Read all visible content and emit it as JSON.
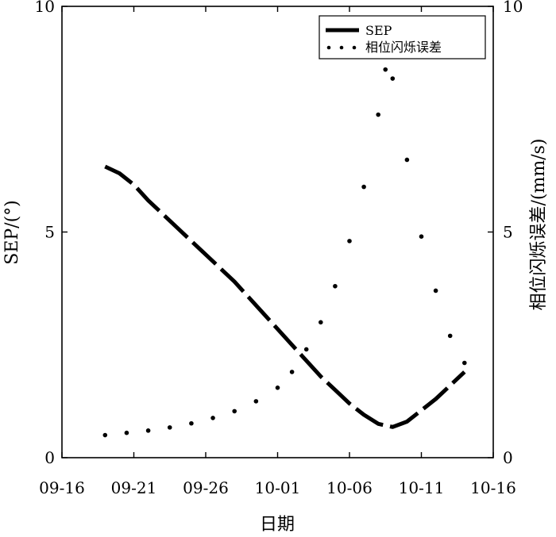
{
  "chart_data": {
    "type": "line",
    "xlabel": "日期",
    "ylabel_left": "SEP/(°)",
    "ylabel_right": "相位闪烁误差/(mm/s)",
    "x_ticks": [
      "09-16",
      "09-21",
      "09-26",
      "10-01",
      "10-06",
      "10-11",
      "10-16"
    ],
    "xlim": [
      "09-16",
      "10-16"
    ],
    "y_left_ticks": [
      "0",
      "5",
      "10"
    ],
    "y_right_ticks": [
      "0",
      "5",
      "10"
    ],
    "ylim_left": [
      0,
      10
    ],
    "ylim_right": [
      0,
      10
    ],
    "grid": false,
    "legend_position": "top-right",
    "colors": {
      "series": "#000000",
      "background": "#ffffff"
    },
    "series": [
      {
        "name": "SEP",
        "style": "thick-dashed",
        "axis": "left",
        "points": [
          [
            "09-19",
            6.45
          ],
          [
            "09-20",
            6.3
          ],
          [
            "09-21",
            6.05
          ],
          [
            "09-22",
            5.7
          ],
          [
            "09-23",
            5.4
          ],
          [
            "09-24",
            5.1
          ],
          [
            "09-25",
            4.8
          ],
          [
            "09-26",
            4.5
          ],
          [
            "09-27",
            4.2
          ],
          [
            "09-28",
            3.9
          ],
          [
            "09-29",
            3.55
          ],
          [
            "09-30",
            3.2
          ],
          [
            "10-01",
            2.85
          ],
          [
            "10-02",
            2.5
          ],
          [
            "10-03",
            2.15
          ],
          [
            "10-04",
            1.8
          ],
          [
            "10-05",
            1.5
          ],
          [
            "10-06",
            1.2
          ],
          [
            "10-07",
            0.95
          ],
          [
            "10-08",
            0.75
          ],
          [
            "10-09",
            0.68
          ],
          [
            "10-10",
            0.8
          ],
          [
            "10-11",
            1.05
          ],
          [
            "10-12",
            1.3
          ],
          [
            "10-13",
            1.6
          ],
          [
            "10-14",
            1.9
          ]
        ]
      },
      {
        "name": "相位闪烁误差",
        "style": "dotted",
        "axis": "right",
        "points": [
          [
            "09-19",
            0.5
          ],
          [
            "09-20.5",
            0.55
          ],
          [
            "09-22",
            0.6
          ],
          [
            "09-23.5",
            0.67
          ],
          [
            "09-25",
            0.76
          ],
          [
            "09-26.5",
            0.88
          ],
          [
            "09-28",
            1.03
          ],
          [
            "09-29.5",
            1.25
          ],
          [
            "10-01",
            1.55
          ],
          [
            "10-02",
            1.9
          ],
          [
            "10-03",
            2.4
          ],
          [
            "10-04",
            3.0
          ],
          [
            "10-05",
            3.8
          ],
          [
            "10-06",
            4.8
          ],
          [
            "10-07",
            6.0
          ],
          [
            "10-08",
            7.6
          ],
          [
            "10-08.5",
            8.6
          ],
          [
            "10-09",
            8.4
          ],
          [
            "10-10",
            6.6
          ],
          [
            "10-11",
            4.9
          ],
          [
            "10-12",
            3.7
          ],
          [
            "10-13",
            2.7
          ],
          [
            "10-14",
            2.1
          ]
        ]
      }
    ]
  }
}
